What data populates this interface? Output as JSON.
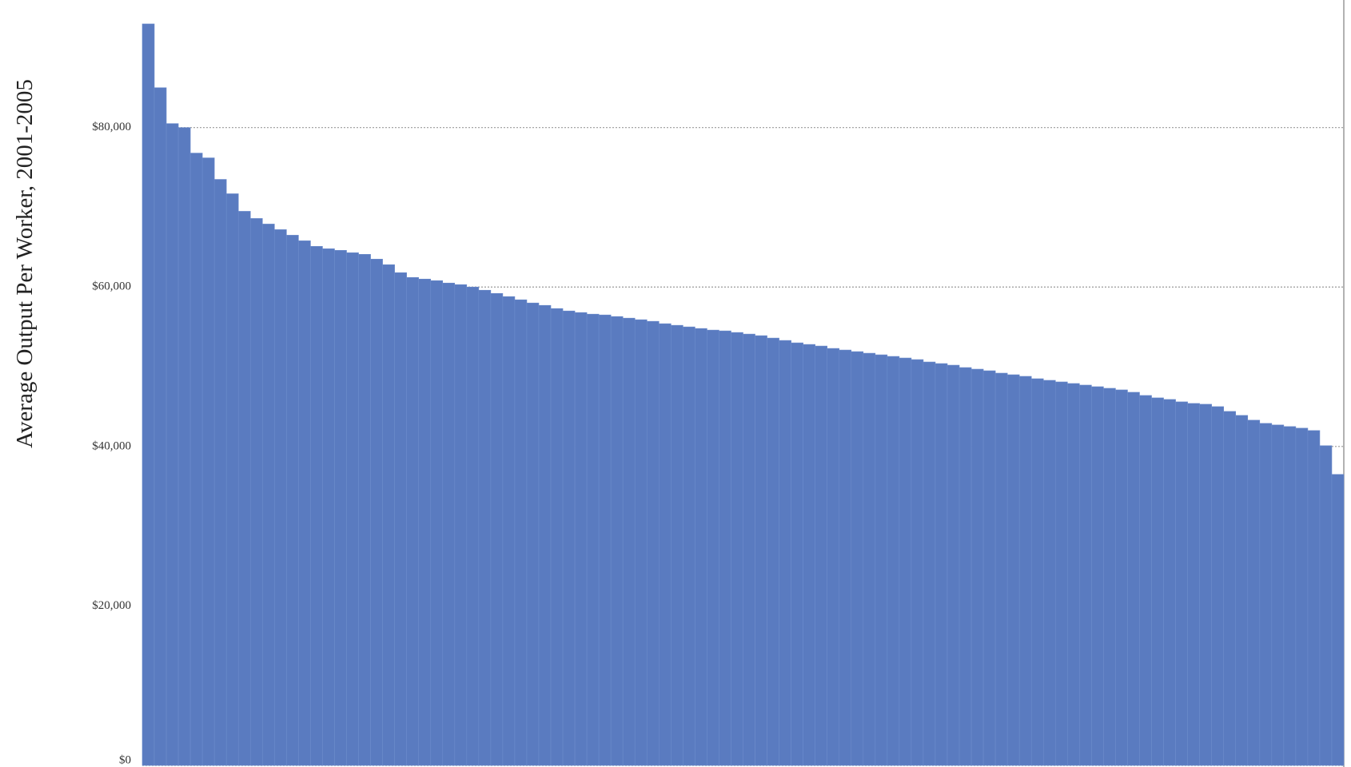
{
  "chart_data": {
    "type": "bar",
    "y_axis_label": "Average Output Per Worker, 2001-2005",
    "color": "#5a7bc0",
    "ylim": [
      0,
      96000
    ],
    "yticks": [
      {
        "value": 0,
        "label": "$0"
      },
      {
        "value": 20000,
        "label": "$20,000"
      },
      {
        "value": 40000,
        "label": "$40,000"
      },
      {
        "value": 60000,
        "label": "$60,000"
      },
      {
        "value": 80000,
        "label": "$80,000"
      }
    ],
    "grid": true,
    "values": [
      93000,
      85000,
      80500,
      80000,
      76800,
      76200,
      73500,
      71700,
      69500,
      68600,
      67900,
      67200,
      66500,
      65800,
      65100,
      64800,
      64600,
      64300,
      64100,
      63500,
      62800,
      61800,
      61200,
      61000,
      60800,
      60500,
      60300,
      60000,
      59600,
      59200,
      58800,
      58400,
      58000,
      57700,
      57300,
      57000,
      56800,
      56600,
      56500,
      56300,
      56100,
      55900,
      55700,
      55400,
      55200,
      55000,
      54800,
      54600,
      54500,
      54300,
      54100,
      53900,
      53600,
      53300,
      53000,
      52800,
      52600,
      52300,
      52100,
      51900,
      51700,
      51500,
      51300,
      51100,
      50900,
      50600,
      50400,
      50200,
      49900,
      49700,
      49500,
      49200,
      49000,
      48800,
      48500,
      48300,
      48100,
      47900,
      47700,
      47500,
      47300,
      47100,
      46800,
      46400,
      46100,
      45900,
      45600,
      45400,
      45300,
      45000,
      44400,
      43900,
      43300,
      42900,
      42700,
      42500,
      42300,
      42000,
      40100,
      36500
    ]
  }
}
